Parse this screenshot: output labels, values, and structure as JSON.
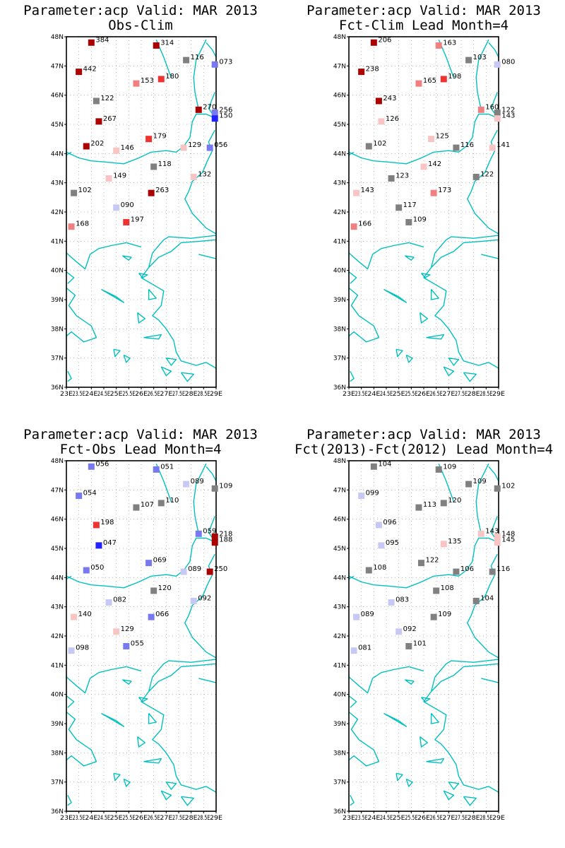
{
  "lon_ticks": [
    "23E",
    "23.5E",
    "24E",
    "24.5E",
    "25E",
    "25.5E",
    "26E",
    "26.5E",
    "27E",
    "27.5E",
    "28E",
    "28.5E",
    "29E"
  ],
  "lat_ticks": [
    "48N",
    "47N",
    "46N",
    "45N",
    "44N",
    "43N",
    "42N",
    "41N",
    "40N",
    "39N",
    "38N",
    "37N",
    "36N"
  ],
  "lon_range": [
    23,
    29
  ],
  "lat_range": [
    36,
    48
  ],
  "grid": true,
  "colors": {
    "coast": "#00c0c0",
    "frame": "#000000",
    "grid": "#aaaaaa",
    "dark_red": "#aa0000",
    "red": "#ee3333",
    "salmon": "#f28080",
    "pink": "#f8c4c4",
    "gray": "#808080",
    "light_blue": "#c8c8f4",
    "blue": "#7878f0",
    "dark_blue": "#2222ff"
  },
  "panels": [
    {
      "title1": "Parameter:acp Valid: MAR 2013",
      "title2": "Obs-Clim",
      "stations": [
        {
          "lon": 24.0,
          "lat": 47.8,
          "label": "384",
          "color": "dark_red"
        },
        {
          "lon": 26.6,
          "lat": 47.7,
          "label": "314",
          "color": "dark_red"
        },
        {
          "lon": 27.8,
          "lat": 47.2,
          "label": "116",
          "color": "gray"
        },
        {
          "lon": 28.95,
          "lat": 47.05,
          "label": "073",
          "color": "blue"
        },
        {
          "lon": 23.5,
          "lat": 46.8,
          "label": "442",
          "color": "dark_red"
        },
        {
          "lon": 25.8,
          "lat": 46.4,
          "label": "153",
          "color": "salmon"
        },
        {
          "lon": 26.8,
          "lat": 46.55,
          "label": "180",
          "color": "red"
        },
        {
          "lon": 24.2,
          "lat": 45.8,
          "label": "122",
          "color": "gray"
        },
        {
          "lon": 28.3,
          "lat": 45.5,
          "label": "270",
          "color": "dark_red"
        },
        {
          "lon": 28.95,
          "lat": 45.4,
          "label": "256",
          "color": "blue"
        },
        {
          "lon": 28.95,
          "lat": 45.2,
          "label": "150",
          "color": "dark_blue"
        },
        {
          "lon": 24.3,
          "lat": 45.1,
          "label": "267",
          "color": "dark_red"
        },
        {
          "lon": 26.3,
          "lat": 44.5,
          "label": "179",
          "color": "red"
        },
        {
          "lon": 23.8,
          "lat": 44.25,
          "label": "202",
          "color": "dark_red"
        },
        {
          "lon": 25.0,
          "lat": 44.1,
          "label": "146",
          "color": "pink"
        },
        {
          "lon": 27.7,
          "lat": 44.2,
          "label": "129",
          "color": "pink"
        },
        {
          "lon": 28.75,
          "lat": 44.2,
          "label": "056",
          "color": "blue"
        },
        {
          "lon": 26.5,
          "lat": 43.55,
          "label": "118",
          "color": "gray"
        },
        {
          "lon": 24.7,
          "lat": 43.15,
          "label": "149",
          "color": "pink"
        },
        {
          "lon": 28.1,
          "lat": 43.2,
          "label": "132",
          "color": "pink"
        },
        {
          "lon": 23.3,
          "lat": 42.65,
          "label": "102",
          "color": "gray"
        },
        {
          "lon": 26.4,
          "lat": 42.65,
          "label": "263",
          "color": "dark_red"
        },
        {
          "lon": 25.0,
          "lat": 42.15,
          "label": "090",
          "color": "light_blue"
        },
        {
          "lon": 25.4,
          "lat": 41.65,
          "label": "197",
          "color": "red"
        },
        {
          "lon": 23.2,
          "lat": 41.5,
          "label": "168",
          "color": "salmon"
        }
      ]
    },
    {
      "title1": "Parameter:acp Valid: MAR 2013",
      "title2": "Fct-Clim Lead Month=4",
      "stations": [
        {
          "lon": 24.0,
          "lat": 47.8,
          "label": "206",
          "color": "dark_red"
        },
        {
          "lon": 26.6,
          "lat": 47.7,
          "label": "163",
          "color": "salmon"
        },
        {
          "lon": 27.8,
          "lat": 47.2,
          "label": "103",
          "color": "gray"
        },
        {
          "lon": 28.95,
          "lat": 47.05,
          "label": "080",
          "color": "light_blue"
        },
        {
          "lon": 23.5,
          "lat": 46.8,
          "label": "238",
          "color": "dark_red"
        },
        {
          "lon": 25.8,
          "lat": 46.4,
          "label": "165",
          "color": "salmon"
        },
        {
          "lon": 26.8,
          "lat": 46.55,
          "label": "198",
          "color": "red"
        },
        {
          "lon": 24.2,
          "lat": 45.8,
          "label": "243",
          "color": "dark_red"
        },
        {
          "lon": 28.3,
          "lat": 45.5,
          "label": "160",
          "color": "salmon"
        },
        {
          "lon": 28.95,
          "lat": 45.4,
          "label": "122",
          "color": "gray"
        },
        {
          "lon": 28.95,
          "lat": 45.2,
          "label": "143",
          "color": "pink"
        },
        {
          "lon": 24.3,
          "lat": 45.1,
          "label": "126",
          "color": "pink"
        },
        {
          "lon": 26.3,
          "lat": 44.5,
          "label": "125",
          "color": "pink"
        },
        {
          "lon": 23.8,
          "lat": 44.25,
          "label": "102",
          "color": "gray"
        },
        {
          "lon": 27.3,
          "lat": 44.2,
          "label": "116",
          "color": "gray"
        },
        {
          "lon": 28.75,
          "lat": 44.2,
          "label": "141",
          "color": "pink"
        },
        {
          "lon": 26.0,
          "lat": 43.55,
          "label": "142",
          "color": "pink"
        },
        {
          "lon": 24.7,
          "lat": 43.15,
          "label": "123",
          "color": "gray"
        },
        {
          "lon": 28.1,
          "lat": 43.2,
          "label": "122",
          "color": "gray"
        },
        {
          "lon": 23.3,
          "lat": 42.65,
          "label": "143",
          "color": "pink"
        },
        {
          "lon": 26.4,
          "lat": 42.65,
          "label": "173",
          "color": "salmon"
        },
        {
          "lon": 25.0,
          "lat": 42.15,
          "label": "117",
          "color": "gray"
        },
        {
          "lon": 25.4,
          "lat": 41.65,
          "label": "109",
          "color": "gray"
        },
        {
          "lon": 23.2,
          "lat": 41.5,
          "label": "166",
          "color": "salmon"
        }
      ]
    },
    {
      "title1": "Parameter:acp Valid: MAR 2013",
      "title2": "Fct-Obs Lead Month=4",
      "stations": [
        {
          "lon": 24.0,
          "lat": 47.8,
          "label": "056",
          "color": "blue"
        },
        {
          "lon": 26.6,
          "lat": 47.7,
          "label": "051",
          "color": "blue"
        },
        {
          "lon": 27.8,
          "lat": 47.2,
          "label": "089",
          "color": "light_blue"
        },
        {
          "lon": 28.95,
          "lat": 47.05,
          "label": "109",
          "color": "gray"
        },
        {
          "lon": 23.5,
          "lat": 46.8,
          "label": "054",
          "color": "blue"
        },
        {
          "lon": 25.8,
          "lat": 46.4,
          "label": "107",
          "color": "gray"
        },
        {
          "lon": 26.8,
          "lat": 46.55,
          "label": "110",
          "color": "gray"
        },
        {
          "lon": 24.2,
          "lat": 45.8,
          "label": "198",
          "color": "red"
        },
        {
          "lon": 28.3,
          "lat": 45.5,
          "label": "059",
          "color": "blue"
        },
        {
          "lon": 28.95,
          "lat": 45.4,
          "label": "218",
          "color": "dark_red"
        },
        {
          "lon": 28.95,
          "lat": 45.2,
          "label": "188",
          "color": "dark_red"
        },
        {
          "lon": 24.3,
          "lat": 45.1,
          "label": "047",
          "color": "dark_blue"
        },
        {
          "lon": 26.3,
          "lat": 44.5,
          "label": "069",
          "color": "blue"
        },
        {
          "lon": 23.8,
          "lat": 44.25,
          "label": "050",
          "color": "blue"
        },
        {
          "lon": 27.7,
          "lat": 44.2,
          "label": "089",
          "color": "light_blue"
        },
        {
          "lon": 28.75,
          "lat": 44.2,
          "label": "250",
          "color": "dark_red"
        },
        {
          "lon": 26.5,
          "lat": 43.55,
          "label": "120",
          "color": "gray"
        },
        {
          "lon": 24.7,
          "lat": 43.15,
          "label": "082",
          "color": "light_blue"
        },
        {
          "lon": 28.1,
          "lat": 43.2,
          "label": "092",
          "color": "light_blue"
        },
        {
          "lon": 23.3,
          "lat": 42.65,
          "label": "140",
          "color": "pink"
        },
        {
          "lon": 26.4,
          "lat": 42.65,
          "label": "066",
          "color": "blue"
        },
        {
          "lon": 25.0,
          "lat": 42.15,
          "label": "129",
          "color": "pink"
        },
        {
          "lon": 25.4,
          "lat": 41.65,
          "label": "055",
          "color": "blue"
        },
        {
          "lon": 23.2,
          "lat": 41.5,
          "label": "098",
          "color": "light_blue"
        }
      ]
    },
    {
      "title1": "Parameter:acp Valid: MAR 2013",
      "title2": "Fct(2013)-Fct(2012) Lead Month=4",
      "stations": [
        {
          "lon": 24.0,
          "lat": 47.8,
          "label": "104",
          "color": "gray"
        },
        {
          "lon": 26.6,
          "lat": 47.7,
          "label": "109",
          "color": "gray"
        },
        {
          "lon": 27.8,
          "lat": 47.2,
          "label": "109",
          "color": "gray"
        },
        {
          "lon": 28.95,
          "lat": 47.05,
          "label": "102",
          "color": "gray"
        },
        {
          "lon": 23.5,
          "lat": 46.8,
          "label": "099",
          "color": "light_blue"
        },
        {
          "lon": 25.8,
          "lat": 46.4,
          "label": "113",
          "color": "gray"
        },
        {
          "lon": 26.8,
          "lat": 46.55,
          "label": "120",
          "color": "gray"
        },
        {
          "lon": 24.2,
          "lat": 45.8,
          "label": "096",
          "color": "light_blue"
        },
        {
          "lon": 28.3,
          "lat": 45.5,
          "label": "143",
          "color": "pink"
        },
        {
          "lon": 28.95,
          "lat": 45.4,
          "label": "148",
          "color": "pink"
        },
        {
          "lon": 28.95,
          "lat": 45.2,
          "label": "145",
          "color": "pink"
        },
        {
          "lon": 24.3,
          "lat": 45.1,
          "label": "095",
          "color": "light_blue"
        },
        {
          "lon": 26.8,
          "lat": 45.15,
          "label": "135",
          "color": "pink"
        },
        {
          "lon": 25.9,
          "lat": 44.5,
          "label": "122",
          "color": "gray"
        },
        {
          "lon": 23.8,
          "lat": 44.25,
          "label": "108",
          "color": "gray"
        },
        {
          "lon": 27.3,
          "lat": 44.2,
          "label": "106",
          "color": "gray"
        },
        {
          "lon": 28.75,
          "lat": 44.2,
          "label": "116",
          "color": "gray"
        },
        {
          "lon": 26.5,
          "lat": 43.55,
          "label": "108",
          "color": "gray"
        },
        {
          "lon": 24.7,
          "lat": 43.15,
          "label": "083",
          "color": "light_blue"
        },
        {
          "lon": 28.1,
          "lat": 43.2,
          "label": "104",
          "color": "gray"
        },
        {
          "lon": 23.3,
          "lat": 42.65,
          "label": "089",
          "color": "light_blue"
        },
        {
          "lon": 26.4,
          "lat": 42.65,
          "label": "109",
          "color": "gray"
        },
        {
          "lon": 25.0,
          "lat": 42.15,
          "label": "092",
          "color": "light_blue"
        },
        {
          "lon": 25.4,
          "lat": 41.65,
          "label": "101",
          "color": "gray"
        },
        {
          "lon": 23.2,
          "lat": 41.5,
          "label": "081",
          "color": "light_blue"
        }
      ]
    }
  ]
}
